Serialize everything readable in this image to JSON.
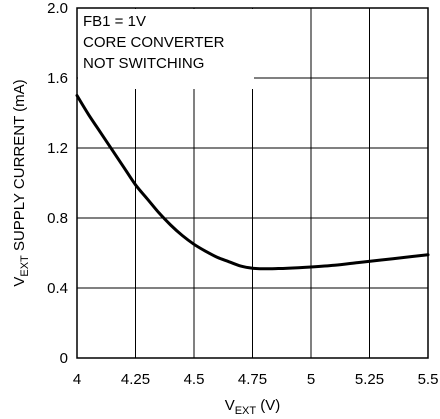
{
  "chart_data": {
    "type": "line",
    "title": "",
    "xlabel": {
      "prefix": "V",
      "sub": "EXT",
      "suffix": " (V)"
    },
    "ylabel": {
      "prefix": "V",
      "sub": "EXT",
      "suffix": " SUPPLY CURRENT (mA)"
    },
    "xlim": [
      4,
      5.5
    ],
    "ylim": [
      0,
      2.0
    ],
    "x_ticks": [
      4,
      4.25,
      4.5,
      4.75,
      5,
      5.25,
      5.5
    ],
    "x_tick_labels": [
      "4",
      "4.25",
      "4.5",
      "4.75",
      "5",
      "5.25",
      "5.5"
    ],
    "y_ticks": [
      0,
      0.4,
      0.8,
      1.2,
      1.6,
      2.0
    ],
    "y_tick_labels": [
      "0",
      "0.4",
      "0.8",
      "1.2",
      "1.6",
      "2.0"
    ],
    "grid": true,
    "annotations": [
      "FB1 = 1V",
      "CORE CONVERTER",
      "NOT SWITCHING"
    ],
    "series": [
      {
        "color": "#000000",
        "x": [
          4.0,
          4.05,
          4.1,
          4.15,
          4.2,
          4.25,
          4.3,
          4.35,
          4.4,
          4.45,
          4.5,
          4.55,
          4.6,
          4.65,
          4.7,
          4.75,
          4.8,
          4.85,
          4.9,
          5.0,
          5.1,
          5.2,
          5.3,
          5.4,
          5.5
        ],
        "y": [
          1.5,
          1.39,
          1.29,
          1.19,
          1.09,
          0.99,
          0.91,
          0.83,
          0.76,
          0.7,
          0.65,
          0.61,
          0.575,
          0.55,
          0.525,
          0.513,
          0.51,
          0.511,
          0.513,
          0.52,
          0.53,
          0.545,
          0.56,
          0.575,
          0.59
        ]
      }
    ]
  }
}
